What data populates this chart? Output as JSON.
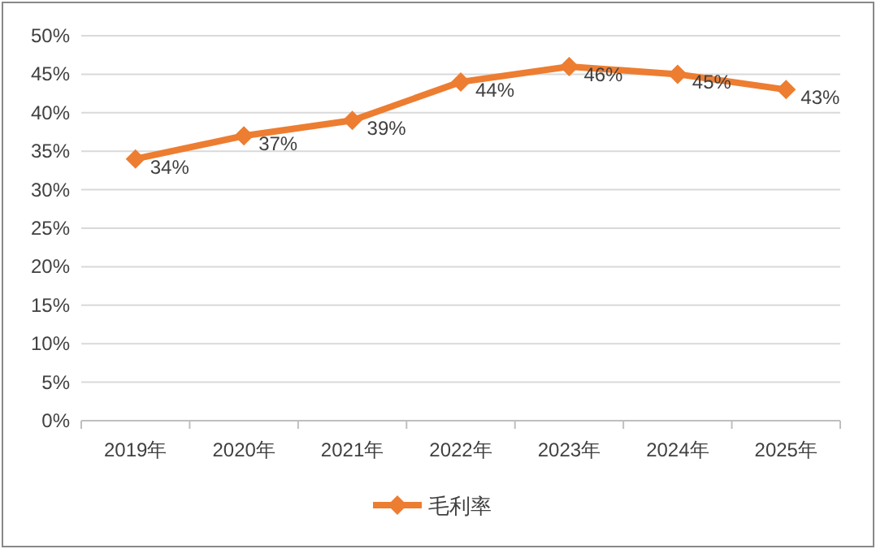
{
  "chart_data": {
    "type": "line",
    "categories": [
      "2019年",
      "2020年",
      "2021年",
      "2022年",
      "2023年",
      "2024年",
      "2025年"
    ],
    "series": [
      {
        "name": "毛利率",
        "color": "#ed7d31",
        "values": [
          34,
          37,
          39,
          44,
          46,
          45,
          43
        ],
        "value_labels": [
          "34%",
          "37%",
          "39%",
          "44%",
          "46%",
          "45%",
          "43%"
        ]
      }
    ],
    "ylim": [
      0,
      50
    ],
    "yticks": [
      {
        "value": 0,
        "label": "0%"
      },
      {
        "value": 5,
        "label": "5%"
      },
      {
        "value": 10,
        "label": "10%"
      },
      {
        "value": 15,
        "label": "15%"
      },
      {
        "value": 20,
        "label": "20%"
      },
      {
        "value": 25,
        "label": "25%"
      },
      {
        "value": 30,
        "label": "30%"
      },
      {
        "value": 35,
        "label": "35%"
      },
      {
        "value": 40,
        "label": "40%"
      },
      {
        "value": 45,
        "label": "45%"
      },
      {
        "value": 50,
        "label": "50%"
      }
    ],
    "grid": "y",
    "legend": "bottom",
    "marker": "diamond",
    "line_style": "solid"
  }
}
